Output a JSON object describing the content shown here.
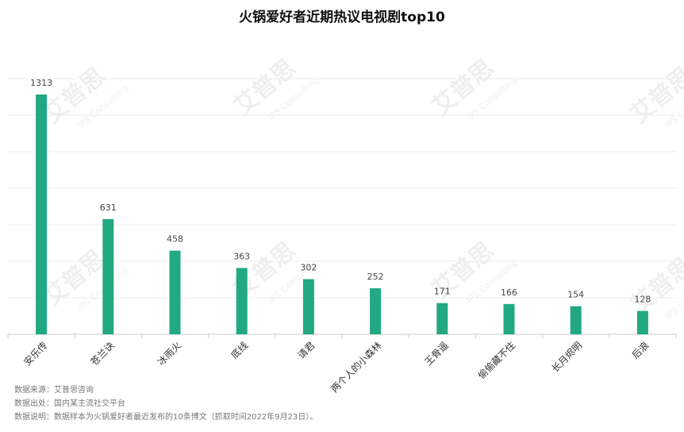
{
  "chart_data": {
    "type": "bar",
    "title": "火锅爱好者近期热议电视剧top10",
    "categories": [
      "安乐传",
      "苍兰诀",
      "冰雨火",
      "底线",
      "请君",
      "两个人的小森林",
      "王骨遥",
      "偷偷藏不住",
      "长月烬明",
      "后浪"
    ],
    "values": [
      1313,
      631,
      458,
      363,
      302,
      252,
      171,
      166,
      154,
      128
    ],
    "color": "#22a883",
    "ylim": [
      0,
      1400
    ],
    "yticks": [
      0,
      200,
      400,
      600,
      800,
      1000,
      1200,
      1400
    ],
    "grid": true,
    "notes": [
      "数据来源：艾普思咨询",
      "数据出处：国内某主流社交平台",
      "数据说明：数据样本为火锅爱好者最近发布的10条博文（抓取时间2022年9月23日）。"
    ],
    "watermark": "艾普思",
    "watermark_sub": "IPS Consulting"
  }
}
